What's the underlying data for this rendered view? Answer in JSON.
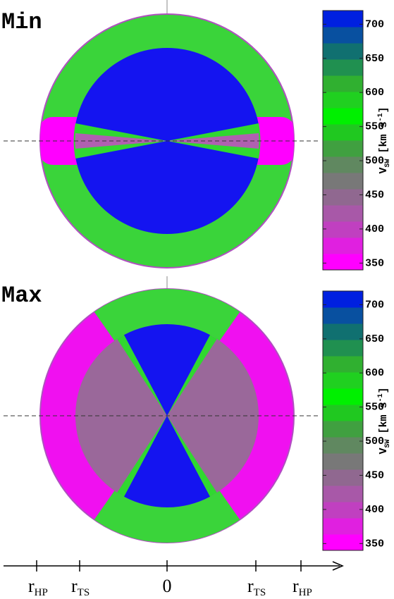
{
  "panels": [
    {
      "title": "Min",
      "colorbar": {
        "label": {
          "main": "V",
          "sub": "SW",
          "unit_open": "[km s",
          "sup": "-1",
          "unit_close": "]"
        },
        "lim": [
          340,
          720
        ],
        "ticks": [
          350,
          400,
          450,
          500,
          550,
          600,
          650,
          700
        ]
      }
    },
    {
      "title": "Max",
      "colorbar": {
        "label": {
          "main": "V",
          "sub": "SW",
          "unit_open": "[km s",
          "sup": "-1",
          "unit_close": "]"
        },
        "lim": [
          340,
          720
        ],
        "ticks": [
          350,
          400,
          450,
          500,
          550,
          600,
          650,
          700
        ]
      }
    }
  ],
  "colormap": [
    "#ff00ff",
    "#e020e0",
    "#c040c0",
    "#a858a8",
    "#906890",
    "#787878",
    "#608860",
    "#40a040",
    "#20c820",
    "#00f000",
    "#20d020",
    "#30b030",
    "#209050",
    "#107070",
    "#0850a0",
    "#0020e0"
  ],
  "axis": {
    "labels": [
      {
        "main": "r",
        "sub": "HP"
      },
      {
        "main": "r",
        "sub": "TS"
      },
      {
        "main": "0"
      },
      {
        "main": "r",
        "sub": "TS"
      },
      {
        "main": "r",
        "sub": "HP"
      }
    ]
  }
}
